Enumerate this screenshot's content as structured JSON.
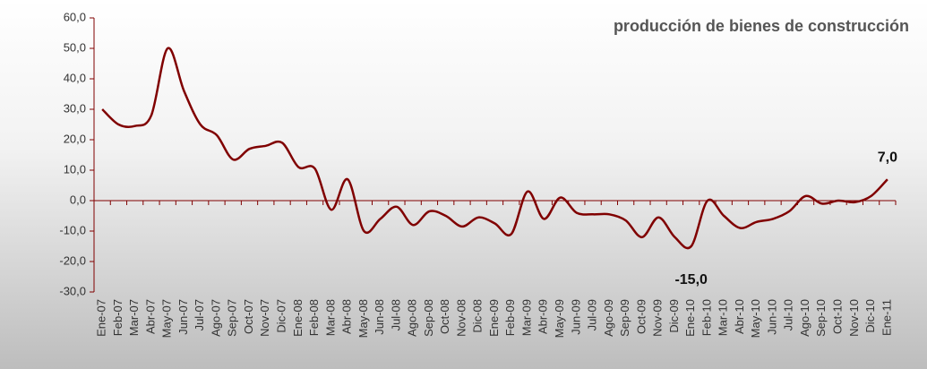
{
  "chart_data": {
    "type": "line",
    "title": "producción de bienes de construcción",
    "categories": [
      "Ene-07",
      "Feb-07",
      "Mar-07",
      "Abr-07",
      "May-07",
      "Jun-07",
      "Jul-07",
      "Ago-07",
      "Sep-07",
      "Oct-07",
      "Nov-07",
      "Dic-07",
      "Ene-08",
      "Feb-08",
      "Mar-08",
      "Abr-08",
      "May-08",
      "Jun-08",
      "Jul-08",
      "Ago-08",
      "Sep-08",
      "Oct-08",
      "Nov-08",
      "Dic-08",
      "Ene-09",
      "Feb-09",
      "Mar-09",
      "Abr-09",
      "May-09",
      "Jun-09",
      "Jul-09",
      "Ago-09",
      "Sep-09",
      "Oct-09",
      "Nov-09",
      "Dic-09",
      "Ene-10",
      "Feb-10",
      "Mar-10",
      "Abr-10",
      "May-10",
      "Jun-10",
      "Jul-10",
      "Ago-10",
      "Sep-10",
      "Oct-10",
      "Nov-10",
      "Dic-10",
      "Ene-11"
    ],
    "values": [
      30,
      25,
      24.5,
      28,
      50,
      36,
      25,
      21.5,
      13.5,
      17,
      18,
      19,
      11,
      10.5,
      -3,
      7,
      -10,
      -6,
      -2,
      -8,
      -3.5,
      -5,
      -8.5,
      -5.5,
      -7.5,
      -11,
      3,
      -6,
      1,
      -4,
      -4.5,
      -4.5,
      -6.5,
      -12,
      -5.5,
      -12,
      -15,
      0,
      -5,
      -9,
      -7,
      -6,
      -3.5,
      1.5,
      -1,
      0,
      -0.5,
      1.5,
      7
    ],
    "value_labels": [
      null,
      null,
      null,
      null,
      null,
      null,
      null,
      null,
      null,
      null,
      null,
      null,
      null,
      null,
      null,
      null,
      null,
      null,
      null,
      null,
      null,
      null,
      null,
      null,
      null,
      null,
      null,
      null,
      null,
      null,
      null,
      null,
      null,
      null,
      null,
      null,
      "-15,0",
      null,
      null,
      null,
      null,
      null,
      null,
      null,
      null,
      null,
      null,
      null,
      "7,0"
    ],
    "color": "#800000",
    "ylim": [
      -30,
      60
    ],
    "yticks": [
      {
        "value": -30,
        "label": "-30,0"
      },
      {
        "value": -20,
        "label": "-20,0"
      },
      {
        "value": -10,
        "label": "-10,0"
      },
      {
        "value": 0,
        "label": "0,0"
      },
      {
        "value": 10,
        "label": "10,0"
      },
      {
        "value": 20,
        "label": "20,0"
      },
      {
        "value": 30,
        "label": "30,0"
      },
      {
        "value": 40,
        "label": "40,0"
      },
      {
        "value": 50,
        "label": "50,0"
      },
      {
        "value": 60,
        "label": "60,0"
      }
    ]
  }
}
